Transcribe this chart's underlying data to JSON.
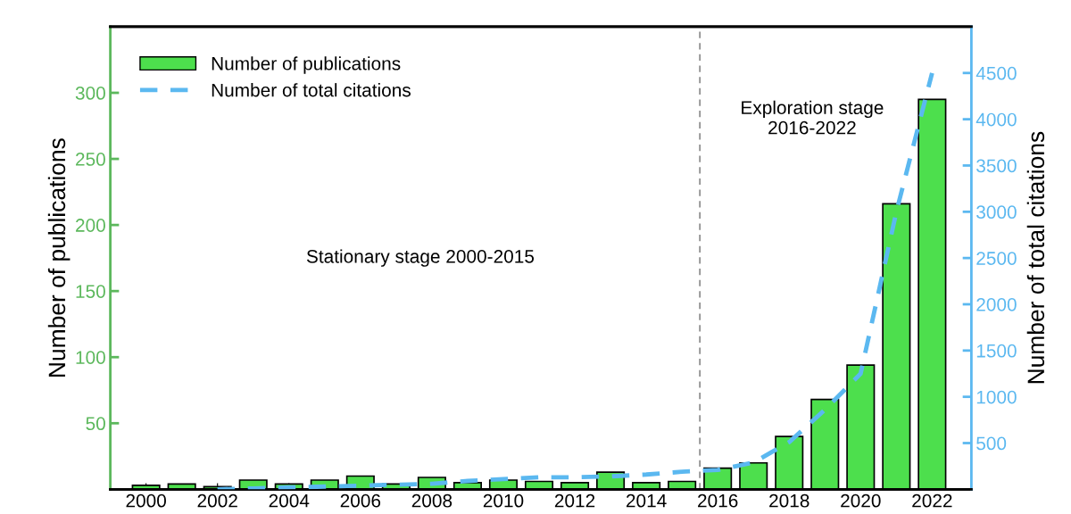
{
  "chart_data": {
    "type": "bar",
    "x": [
      2000,
      2001,
      2002,
      2003,
      2004,
      2005,
      2006,
      2007,
      2008,
      2009,
      2010,
      2011,
      2012,
      2013,
      2014,
      2015,
      2016,
      2017,
      2018,
      2019,
      2020,
      2021,
      2022
    ],
    "series": [
      {
        "name": "Number of publications",
        "color": "#4ddf4d",
        "values": [
          3,
          4,
          2,
          7,
          4,
          7,
          10,
          4,
          9,
          5,
          7,
          6,
          5,
          13,
          5,
          6,
          16,
          20,
          40,
          68,
          94,
          216,
          295
        ]
      },
      {
        "name": "Number of total citations",
        "type": "line",
        "axis": "y2",
        "color": "#5bb8f0",
        "line_style": "dashed",
        "marker": "none",
        "values": [
          null,
          null,
          0,
          10,
          20,
          30,
          40,
          50,
          60,
          90,
          110,
          130,
          130,
          140,
          160,
          190,
          210,
          290,
          510,
          860,
          1250,
          3000,
          4500
        ]
      }
    ],
    "ylabel": "Number of publications",
    "y2label": "Number of total citations",
    "xlim": [
      1999,
      2023.1
    ],
    "xticks": [
      2000,
      2002,
      2004,
      2006,
      2008,
      2010,
      2012,
      2014,
      2016,
      2018,
      2020,
      2022
    ],
    "ylim": [
      0,
      350
    ],
    "yticks": [
      50,
      100,
      150,
      200,
      250,
      300
    ],
    "y2lim": [
      0,
      5000
    ],
    "y2ticks": [
      500,
      1000,
      1500,
      2000,
      2500,
      3000,
      3500,
      4000,
      4500
    ],
    "ref_lines": [
      {
        "axis": "x",
        "value": 2015.5,
        "color": "#909090",
        "line_style": "dashed"
      }
    ],
    "annotations": [
      "Stationary stage 2000-2015",
      "Exploration stage\n2016-2022"
    ],
    "legend": "top left",
    "grid": false
  }
}
